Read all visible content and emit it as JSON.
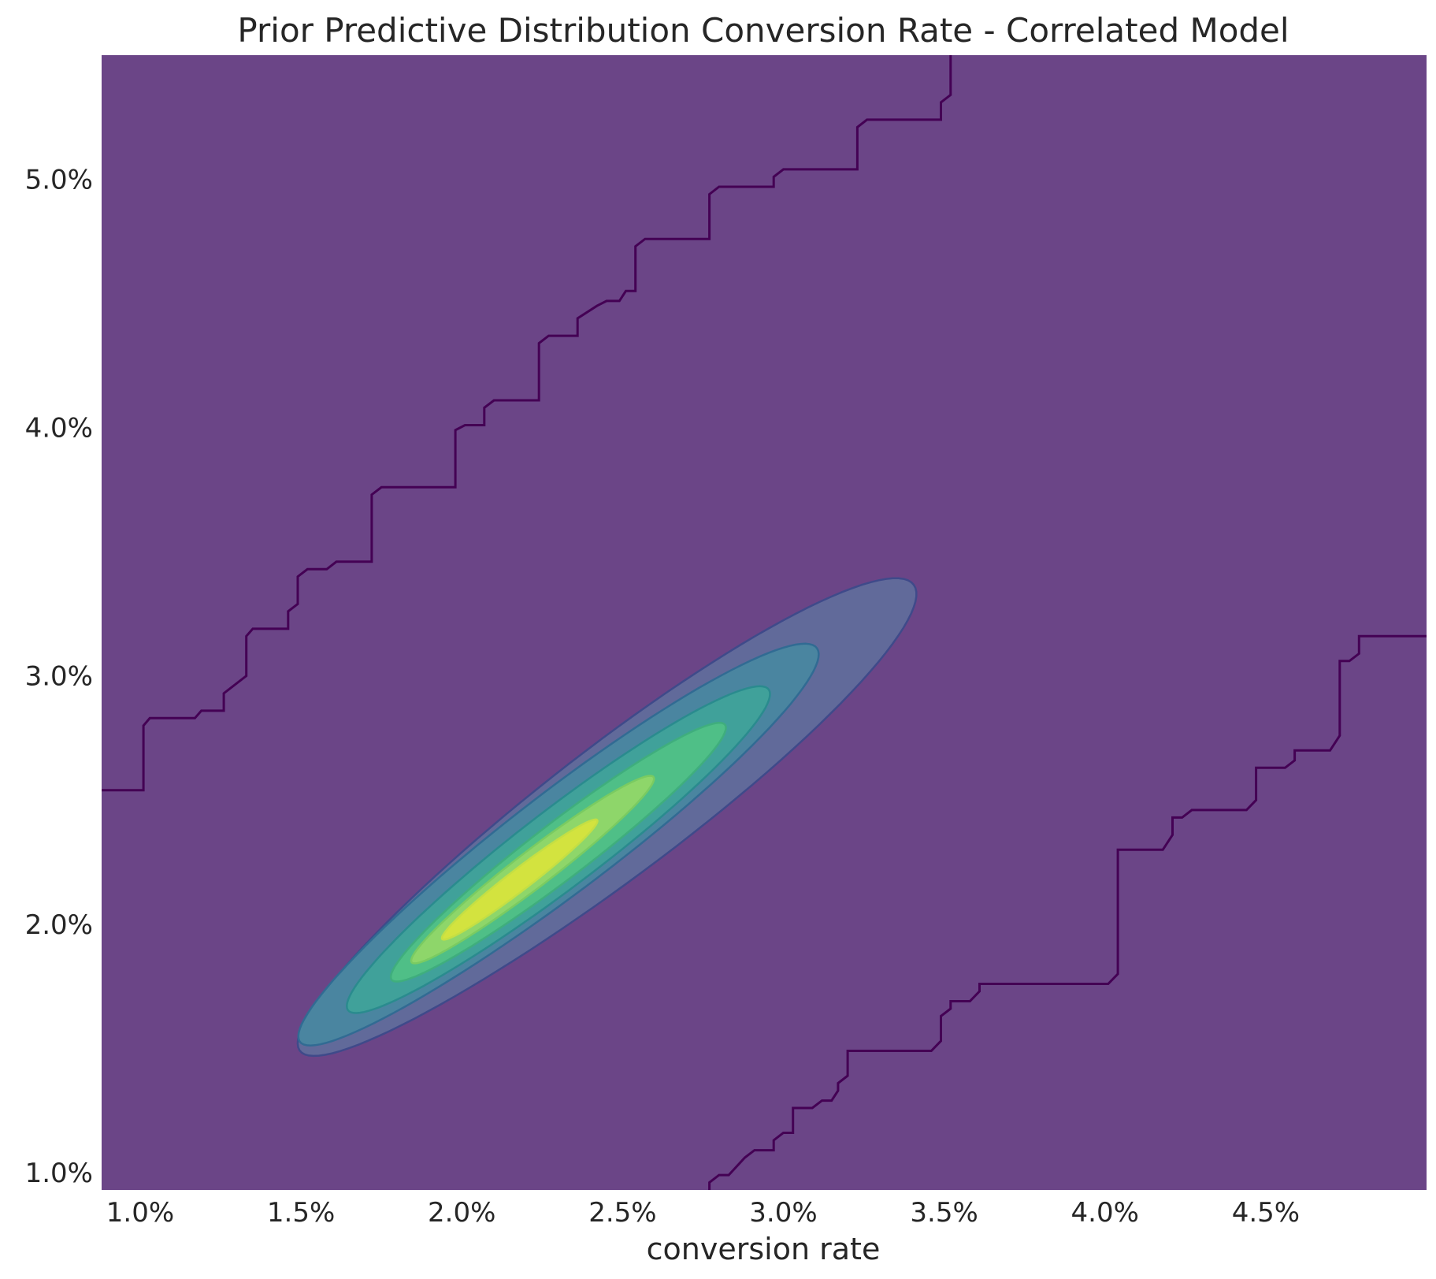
{
  "chart_data": {
    "type": "contour",
    "title": "Prior Predictive Distribution Conversion Rate - Correlated Model",
    "xlabel": "conversion rate",
    "ylabel": "",
    "xlim": [
      0.0088,
      0.05
    ],
    "ylim": [
      0.0093,
      0.055
    ],
    "x_ticks": [
      {
        "value": 0.01,
        "label": "1.0%"
      },
      {
        "value": 0.015,
        "label": "1.5%"
      },
      {
        "value": 0.02,
        "label": "2.0%"
      },
      {
        "value": 0.025,
        "label": "2.5%"
      },
      {
        "value": 0.03,
        "label": "3.0%"
      },
      {
        "value": 0.035,
        "label": "3.5%"
      },
      {
        "value": 0.04,
        "label": "4.0%"
      },
      {
        "value": 0.045,
        "label": "4.5%"
      }
    ],
    "y_ticks": [
      {
        "value": 0.01,
        "label": "1.0%"
      },
      {
        "value": 0.02,
        "label": "2.0%"
      },
      {
        "value": 0.03,
        "label": "3.0%"
      },
      {
        "value": 0.04,
        "label": "4.0%"
      },
      {
        "value": 0.05,
        "label": "5.0%"
      }
    ],
    "grid": false,
    "colormap": "viridis",
    "background_level_color": "#6b4587",
    "levels": [
      {
        "color": "#616a9a",
        "edge": "#3f4a8a",
        "center_x": 0.0245,
        "center_y": 0.0243,
        "along": 0.0134,
        "across": 0.00235,
        "bulge": 0.06
      },
      {
        "color": "#4a85a0",
        "edge": "#316b93",
        "center_x": 0.023,
        "center_y": 0.0232,
        "along": 0.0113,
        "across": 0.0018,
        "bulge": 0.04
      },
      {
        "color": "#40a19a",
        "edge": "#2a8b8e",
        "center_x": 0.023,
        "center_y": 0.023,
        "along": 0.0092,
        "across": 0.0014,
        "bulge": 0.03
      },
      {
        "color": "#4fbf87",
        "edge": "#3fae7d",
        "center_x": 0.023,
        "center_y": 0.0229,
        "along": 0.0073,
        "across": 0.001,
        "bulge": 0.02
      },
      {
        "color": "#8ed66a",
        "edge": "#7acb61",
        "center_x": 0.0222,
        "center_y": 0.0222,
        "along": 0.0053,
        "across": 0.00065,
        "bulge": 0.02
      },
      {
        "color": "#d3e33f",
        "edge": "#c5df43",
        "center_x": 0.0218,
        "center_y": 0.0218,
        "along": 0.0034,
        "across": 0.00038,
        "bulge": 0.0
      }
    ],
    "outer_contour_upper": [
      [
        0.0088,
        0.0254
      ],
      [
        0.0101,
        0.0254
      ],
      [
        0.0101,
        0.028
      ],
      [
        0.0103,
        0.0283
      ],
      [
        0.0117,
        0.0283
      ],
      [
        0.0119,
        0.0286
      ],
      [
        0.0126,
        0.0286
      ],
      [
        0.0126,
        0.0293
      ],
      [
        0.0133,
        0.03
      ],
      [
        0.0133,
        0.0316
      ],
      [
        0.0135,
        0.0319
      ],
      [
        0.0146,
        0.0319
      ],
      [
        0.0146,
        0.0326
      ],
      [
        0.0149,
        0.0329
      ],
      [
        0.0149,
        0.034
      ],
      [
        0.0152,
        0.0343
      ],
      [
        0.0158,
        0.0343
      ],
      [
        0.0161,
        0.0346
      ],
      [
        0.0172,
        0.0346
      ],
      [
        0.0172,
        0.0373
      ],
      [
        0.0175,
        0.0376
      ],
      [
        0.0198,
        0.0376
      ],
      [
        0.0198,
        0.0399
      ],
      [
        0.0201,
        0.0401
      ],
      [
        0.0207,
        0.0401
      ],
      [
        0.0207,
        0.0408
      ],
      [
        0.021,
        0.0411
      ],
      [
        0.0224,
        0.0411
      ],
      [
        0.0224,
        0.0434
      ],
      [
        0.0227,
        0.0437
      ],
      [
        0.0236,
        0.0437
      ],
      [
        0.0236,
        0.0444
      ],
      [
        0.0242,
        0.0449
      ],
      [
        0.0245,
        0.0451
      ],
      [
        0.0249,
        0.0451
      ],
      [
        0.0251,
        0.0455
      ],
      [
        0.0254,
        0.0455
      ],
      [
        0.0254,
        0.0473
      ],
      [
        0.0257,
        0.0476
      ],
      [
        0.0277,
        0.0476
      ],
      [
        0.0277,
        0.0494
      ],
      [
        0.028,
        0.0497
      ],
      [
        0.0297,
        0.0497
      ],
      [
        0.0297,
        0.0501
      ],
      [
        0.03,
        0.0504
      ],
      [
        0.0323,
        0.0504
      ],
      [
        0.0323,
        0.0521
      ],
      [
        0.0326,
        0.0524
      ],
      [
        0.0349,
        0.0524
      ],
      [
        0.0349,
        0.0531
      ],
      [
        0.0352,
        0.0534
      ],
      [
        0.0352,
        0.055
      ]
    ],
    "outer_contour_lower": [
      [
        0.0277,
        0.0093
      ],
      [
        0.0277,
        0.0096
      ],
      [
        0.028,
        0.0099
      ],
      [
        0.0283,
        0.0099
      ],
      [
        0.0288,
        0.0106
      ],
      [
        0.0291,
        0.0109
      ],
      [
        0.0297,
        0.0109
      ],
      [
        0.0297,
        0.0113
      ],
      [
        0.03,
        0.0116
      ],
      [
        0.0303,
        0.0116
      ],
      [
        0.0303,
        0.0126
      ],
      [
        0.0309,
        0.0126
      ],
      [
        0.0312,
        0.0129
      ],
      [
        0.0315,
        0.0129
      ],
      [
        0.0317,
        0.0133
      ],
      [
        0.0317,
        0.0136
      ],
      [
        0.032,
        0.0139
      ],
      [
        0.032,
        0.0149
      ],
      [
        0.0346,
        0.0149
      ],
      [
        0.0349,
        0.0153
      ],
      [
        0.0349,
        0.0163
      ],
      [
        0.0352,
        0.0166
      ],
      [
        0.0352,
        0.0169
      ],
      [
        0.0358,
        0.0169
      ],
      [
        0.0361,
        0.0173
      ],
      [
        0.0361,
        0.0176
      ],
      [
        0.0401,
        0.0176
      ],
      [
        0.0404,
        0.018
      ],
      [
        0.0404,
        0.023
      ],
      [
        0.0418,
        0.023
      ],
      [
        0.0421,
        0.0236
      ],
      [
        0.0421,
        0.0243
      ],
      [
        0.0424,
        0.0243
      ],
      [
        0.0427,
        0.0246
      ],
      [
        0.0444,
        0.0246
      ],
      [
        0.0447,
        0.025
      ],
      [
        0.0447,
        0.0263
      ],
      [
        0.0456,
        0.0263
      ],
      [
        0.0459,
        0.0266
      ],
      [
        0.0459,
        0.027
      ],
      [
        0.047,
        0.027
      ],
      [
        0.0473,
        0.0276
      ],
      [
        0.0473,
        0.0306
      ],
      [
        0.0476,
        0.0306
      ],
      [
        0.0479,
        0.0309
      ],
      [
        0.0479,
        0.0316
      ],
      [
        0.05,
        0.0316
      ]
    ],
    "outer_contour_color": "#440154"
  }
}
